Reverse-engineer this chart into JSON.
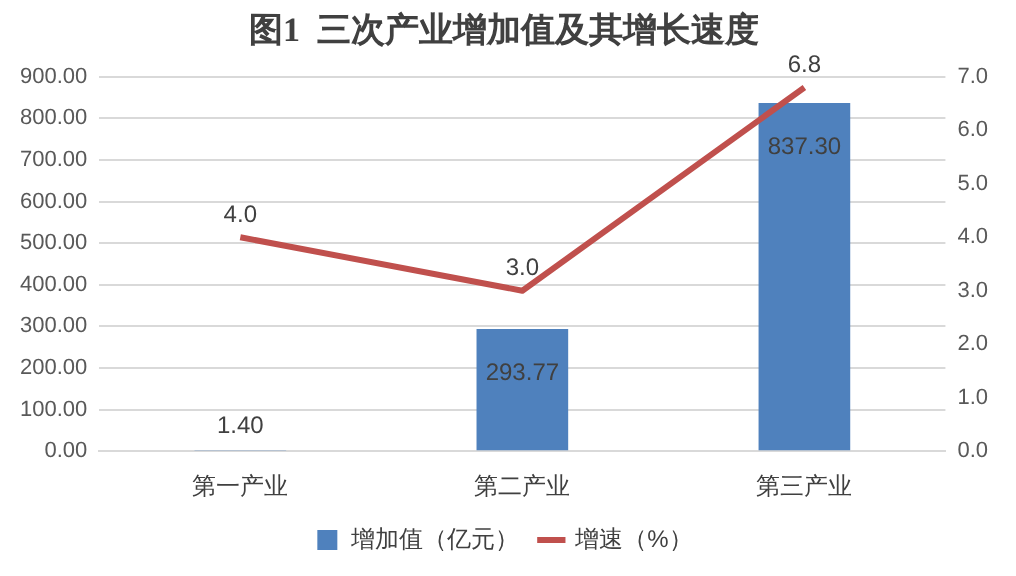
{
  "chart_data": {
    "type": "bar",
    "title": "图1  三次产业增加值及其增长速度",
    "categories": [
      "第一产业",
      "第二产业",
      "第三产业"
    ],
    "series": [
      {
        "name": "增加值（亿元）",
        "color": "#4f81bd",
        "values": [
          1.4,
          293.77,
          837.3
        ],
        "value_labels": [
          "1.40",
          "293.77",
          "837.30"
        ]
      },
      {
        "name": "增速（%）",
        "type": "line",
        "axis": "y2",
        "color": "#c0504d",
        "values": [
          4.0,
          3.0,
          6.8
        ],
        "value_labels": [
          "4.0",
          "3.0",
          "6.8"
        ]
      }
    ],
    "ylim": [
      0,
      900
    ],
    "yticks": [
      {
        "value": 0,
        "label": "0.00"
      },
      {
        "value": 100,
        "label": "100.00"
      },
      {
        "value": 200,
        "label": "200.00"
      },
      {
        "value": 300,
        "label": "300.00"
      },
      {
        "value": 400,
        "label": "400.00"
      },
      {
        "value": 500,
        "label": "500.00"
      },
      {
        "value": 600,
        "label": "600.00"
      },
      {
        "value": 700,
        "label": "700.00"
      },
      {
        "value": 800,
        "label": "800.00"
      },
      {
        "value": 900,
        "label": "900.00"
      }
    ],
    "y2lim": [
      0,
      7
    ],
    "y2ticks": [
      {
        "value": 0,
        "label": "0.0"
      },
      {
        "value": 1,
        "label": "1.0"
      },
      {
        "value": 2,
        "label": "2.0"
      },
      {
        "value": 3,
        "label": "3.0"
      },
      {
        "value": 4,
        "label": "4.0"
      },
      {
        "value": 5,
        "label": "5.0"
      },
      {
        "value": 6,
        "label": "6.0"
      },
      {
        "value": 7,
        "label": "7.0"
      }
    ],
    "data_labels": true,
    "grid": "y",
    "legend": "bottom",
    "marker": "none",
    "line_style": "solid"
  }
}
